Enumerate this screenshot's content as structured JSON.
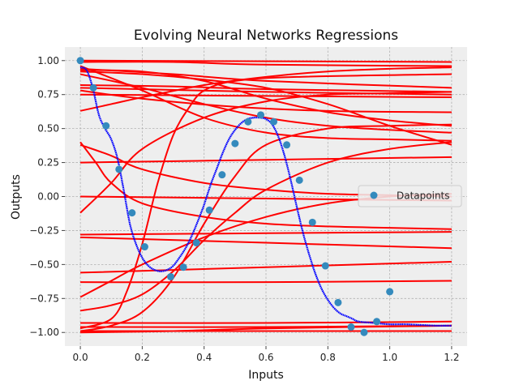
{
  "chart_data": {
    "type": "line",
    "title": "Evolving Neural Networks Regressions",
    "xlabel": "Inputs",
    "ylabel": "Outputs",
    "xlim": [
      -0.05,
      1.25
    ],
    "ylim": [
      -1.1,
      1.1
    ],
    "xticks": [
      0.0,
      0.2,
      0.4,
      0.6,
      0.8,
      1.0,
      1.2
    ],
    "xtick_labels": [
      "0.0",
      "0.2",
      "0.4",
      "0.6",
      "0.8",
      "1.0",
      "1.2"
    ],
    "yticks": [
      -1.0,
      -0.75,
      -0.5,
      -0.25,
      0.0,
      0.25,
      0.5,
      0.75,
      1.0
    ],
    "ytick_labels": [
      "−1.00",
      "−0.75",
      "−0.50",
      "−0.25",
      "0.00",
      "0.25",
      "0.50",
      "0.75",
      "1.00"
    ],
    "grid": true,
    "legend": {
      "position": "center-right",
      "entries": [
        "Datapoints"
      ]
    },
    "colors": {
      "background": "#eeeeee",
      "grid": "#b0b0b0",
      "evolving_curves": "#ff0000",
      "best_fit_curve": "#0000ff",
      "datapoints": "#348abd"
    },
    "datapoints": {
      "x": [
        0.0,
        0.042,
        0.083,
        0.125,
        0.167,
        0.208,
        0.292,
        0.333,
        0.375,
        0.417,
        0.458,
        0.5,
        0.542,
        0.583,
        0.625,
        0.667,
        0.708,
        0.75,
        0.792,
        0.833,
        0.875,
        0.917,
        0.958,
        1.0
      ],
      "y": [
        1.0,
        0.8,
        0.52,
        0.2,
        -0.12,
        -0.37,
        -0.59,
        -0.52,
        -0.34,
        -0.1,
        0.16,
        0.39,
        0.55,
        0.6,
        0.55,
        0.38,
        0.12,
        -0.19,
        -0.51,
        -0.78,
        -0.96,
        -1.0,
        -0.92,
        -0.7
      ]
    },
    "best_fit_curve": {
      "x": [
        0.0,
        0.02,
        0.04,
        0.06,
        0.08,
        0.1,
        0.12,
        0.14,
        0.16,
        0.18,
        0.2,
        0.22,
        0.24,
        0.26,
        0.28,
        0.3,
        0.32,
        0.34,
        0.36,
        0.38,
        0.4,
        0.42,
        0.44,
        0.46,
        0.48,
        0.5,
        0.52,
        0.54,
        0.56,
        0.58,
        0.6,
        0.62,
        0.64,
        0.66,
        0.68,
        0.7,
        0.72,
        0.74,
        0.76,
        0.78,
        0.8,
        0.82,
        0.84,
        0.86,
        0.88,
        0.9,
        0.95,
        1.0,
        1.05,
        1.1,
        1.15,
        1.2
      ],
      "y": [
        0.95,
        0.93,
        0.8,
        0.6,
        0.5,
        0.42,
        0.28,
        0.05,
        -0.2,
        -0.35,
        -0.45,
        -0.51,
        -0.54,
        -0.55,
        -0.54,
        -0.51,
        -0.45,
        -0.38,
        -0.29,
        -0.18,
        -0.06,
        0.08,
        0.2,
        0.32,
        0.42,
        0.49,
        0.54,
        0.57,
        0.58,
        0.58,
        0.57,
        0.53,
        0.44,
        0.3,
        0.12,
        -0.08,
        -0.27,
        -0.43,
        -0.57,
        -0.68,
        -0.76,
        -0.82,
        -0.86,
        -0.88,
        -0.9,
        -0.92,
        -0.93,
        -0.94,
        -0.94,
        -0.945,
        -0.95,
        -0.95
      ]
    },
    "evolving_curves": [
      {
        "x": [
          0.0,
          1.2
        ],
        "y": [
          1.0,
          0.99
        ]
      },
      {
        "x": [
          0.0,
          0.3,
          0.6,
          1.2
        ],
        "y": [
          0.99,
          0.99,
          0.97,
          0.96
        ]
      },
      {
        "x": [
          0.0,
          0.3,
          0.6,
          1.2
        ],
        "y": [
          0.94,
          0.9,
          0.85,
          0.8
        ]
      },
      {
        "x": [
          0.0,
          0.3,
          0.6,
          1.2
        ],
        "y": [
          0.82,
          0.81,
          0.79,
          0.77
        ]
      },
      {
        "x": [
          0.0,
          0.6,
          1.2
        ],
        "y": [
          0.8,
          0.77,
          0.75
        ]
      },
      {
        "x": [
          0.0,
          0.6,
          1.2
        ],
        "y": [
          0.75,
          0.74,
          0.73
        ]
      },
      {
        "x": [
          0.0,
          0.2,
          0.5,
          0.8,
          1.2
        ],
        "y": [
          0.78,
          0.72,
          0.66,
          0.63,
          0.62
        ]
      },
      {
        "x": [
          0.0,
          0.2,
          0.4,
          0.6,
          0.8,
          1.0,
          1.2
        ],
        "y": [
          0.9,
          0.8,
          0.68,
          0.58,
          0.52,
          0.49,
          0.47
        ]
      },
      {
        "x": [
          0.0,
          0.2,
          0.4,
          0.6,
          0.8,
          1.0,
          1.2
        ],
        "y": [
          0.93,
          0.92,
          0.85,
          0.72,
          0.62,
          0.56,
          0.52
        ]
      },
      {
        "x": [
          0.0,
          0.1,
          0.2,
          0.4,
          0.6,
          0.8,
          1.0,
          1.2
        ],
        "y": [
          0.63,
          0.68,
          0.73,
          0.82,
          0.88,
          0.92,
          0.94,
          0.95
        ]
      },
      {
        "x": [
          0.0,
          0.2,
          0.4,
          0.6,
          0.8,
          1.0,
          1.2
        ],
        "y": [
          0.96,
          0.78,
          0.58,
          0.47,
          0.43,
          0.42,
          0.41
        ]
      },
      {
        "x": [
          0.0,
          0.2,
          0.4,
          0.6,
          0.8,
          1.0,
          1.2
        ],
        "y": [
          0.92,
          0.9,
          0.86,
          0.8,
          0.68,
          0.52,
          0.38
        ]
      },
      {
        "x": [
          0.0,
          0.6,
          1.2
        ],
        "y": [
          0.25,
          0.27,
          0.29
        ]
      },
      {
        "x": [
          0.0,
          0.1,
          0.2,
          0.4,
          0.6,
          0.8,
          1.0,
          1.2
        ],
        "y": [
          0.38,
          0.3,
          0.2,
          0.1,
          0.05,
          0.02,
          0.01,
          0.0
        ]
      },
      {
        "x": [
          0.0,
          0.05,
          0.1,
          0.2,
          0.4,
          0.6,
          0.8,
          1.0,
          1.2
        ],
        "y": [
          0.4,
          0.25,
          0.1,
          -0.05,
          -0.15,
          -0.2,
          -0.22,
          -0.23,
          -0.24
        ]
      },
      {
        "x": [
          0.0,
          0.1,
          0.2,
          0.4,
          0.6,
          0.8,
          1.0,
          1.2
        ],
        "y": [
          -0.12,
          0.1,
          0.35,
          0.58,
          0.7,
          0.75,
          0.76,
          0.77
        ]
      },
      {
        "x": [
          0.0,
          0.4,
          0.8,
          1.2
        ],
        "y": [
          0.0,
          -0.01,
          -0.02,
          -0.03
        ]
      },
      {
        "x": [
          0.0,
          0.6,
          1.2
        ],
        "y": [
          -0.28,
          -0.27,
          -0.26
        ]
      },
      {
        "x": [
          0.0,
          0.6,
          1.2
        ],
        "y": [
          -0.3,
          -0.34,
          -0.38
        ]
      },
      {
        "x": [
          0.0,
          0.6,
          1.2
        ],
        "y": [
          -0.56,
          -0.52,
          -0.48
        ]
      },
      {
        "x": [
          0.0,
          0.6,
          1.2
        ],
        "y": [
          -0.63,
          -0.63,
          -0.62
        ]
      },
      {
        "x": [
          0.0,
          0.1,
          0.2,
          0.4,
          0.6,
          0.8,
          1.0,
          1.2
        ],
        "y": [
          -0.74,
          -0.62,
          -0.5,
          -0.3,
          -0.15,
          -0.05,
          0.0,
          0.02
        ]
      },
      {
        "x": [
          0.0,
          0.1,
          0.2,
          0.3,
          0.4,
          0.5,
          0.6,
          0.8,
          1.0,
          1.2
        ],
        "y": [
          -0.84,
          -0.8,
          -0.72,
          -0.55,
          -0.32,
          -0.12,
          0.05,
          0.25,
          0.35,
          0.4
        ]
      },
      {
        "x": [
          0.0,
          0.1,
          0.15,
          0.2,
          0.25,
          0.3,
          0.35,
          0.4,
          0.5,
          0.7,
          1.2
        ],
        "y": [
          -0.97,
          -0.9,
          -0.7,
          -0.35,
          0.1,
          0.45,
          0.65,
          0.78,
          0.85,
          0.88,
          0.9
        ]
      },
      {
        "x": [
          0.0,
          0.1,
          0.2,
          0.3,
          0.4,
          0.5,
          0.6,
          0.8,
          1.0,
          1.2
        ],
        "y": [
          -0.99,
          -0.95,
          -0.85,
          -0.6,
          -0.2,
          0.15,
          0.38,
          0.5,
          0.52,
          0.53
        ]
      },
      {
        "x": [
          0.0,
          0.6,
          1.2
        ],
        "y": [
          -0.93,
          -0.93,
          -0.92
        ]
      },
      {
        "x": [
          0.0,
          0.6,
          1.2
        ],
        "y": [
          -0.96,
          -0.96,
          -0.95
        ]
      },
      {
        "x": [
          0.0,
          0.6,
          1.2
        ],
        "y": [
          -0.99,
          -0.99,
          -0.99
        ]
      },
      {
        "x": [
          0.0,
          0.3,
          0.6,
          1.2
        ],
        "y": [
          -1.0,
          -0.99,
          -0.97,
          -0.95
        ]
      }
    ]
  }
}
